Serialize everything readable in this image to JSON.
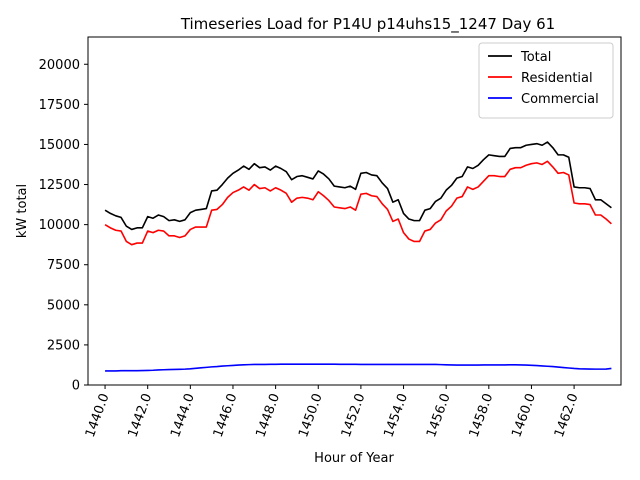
{
  "chart_data": {
    "type": "line",
    "title": "Timeseries Load for P14U p14uhs15_1247  Day 61",
    "xlabel": "Hour of Year",
    "ylabel": "kW total",
    "xlim": [
      1439.2,
      1464.2
    ],
    "ylim": [
      0,
      21700
    ],
    "xticks": [
      1440,
      1442,
      1444,
      1446,
      1448,
      1450,
      1452,
      1454,
      1456,
      1458,
      1460,
      1462
    ],
    "xtick_labels": [
      "1440.0",
      "1442.0",
      "1444.0",
      "1446.0",
      "1448.0",
      "1450.0",
      "1452.0",
      "1454.0",
      "1456.0",
      "1458.0",
      "1460.0",
      "1462.0"
    ],
    "yticks": [
      0,
      2500,
      5000,
      7500,
      10000,
      12500,
      15000,
      17500,
      20000
    ],
    "ytick_labels": [
      "0",
      "2500",
      "5000",
      "7500",
      "10000",
      "12500",
      "15000",
      "17500",
      "20000"
    ],
    "legend_position": "top-right",
    "x_start": 1440,
    "x_step": 0.25,
    "series": [
      {
        "name": "Total",
        "color": "#000000",
        "values": [
          10900,
          10700,
          10550,
          10450,
          9900,
          9700,
          9800,
          9800,
          10500,
          10400,
          10600,
          10500,
          10250,
          10300,
          10200,
          10300,
          10750,
          10900,
          10950,
          11000,
          12100,
          12150,
          12500,
          12900,
          13200,
          13400,
          13650,
          13450,
          13800,
          13550,
          13600,
          13400,
          13650,
          13500,
          13300,
          12800,
          13000,
          13050,
          12950,
          12850,
          13350,
          13150,
          12850,
          12400,
          12350,
          12300,
          12400,
          12200,
          13200,
          13250,
          13100,
          13050,
          12600,
          12250,
          11400,
          11550,
          10700,
          10350,
          10250,
          10250,
          10900,
          11000,
          11450,
          11650,
          12150,
          12450,
          12900,
          13000,
          13600,
          13500,
          13700,
          14050,
          14350,
          14300,
          14250,
          14250,
          14750,
          14800,
          14800,
          14950,
          15000,
          15050,
          14950,
          15150,
          14800,
          14350,
          14350,
          14200,
          12350,
          12300,
          12300,
          12250,
          11550,
          11550,
          11300,
          11050
        ]
      },
      {
        "name": "Residential",
        "color": "#ff0000",
        "values": [
          10000,
          9800,
          9650,
          9600,
          8950,
          8750,
          8850,
          8850,
          9600,
          9500,
          9650,
          9600,
          9300,
          9300,
          9200,
          9300,
          9700,
          9850,
          9850,
          9850,
          10900,
          10950,
          11250,
          11700,
          12000,
          12150,
          12350,
          12150,
          12500,
          12250,
          12300,
          12100,
          12300,
          12150,
          11950,
          11400,
          11650,
          11700,
          11650,
          11550,
          12050,
          11800,
          11500,
          11100,
          11050,
          11000,
          11100,
          10900,
          11900,
          11950,
          11800,
          11750,
          11300,
          10950,
          10200,
          10350,
          9500,
          9100,
          8950,
          8950,
          9600,
          9700,
          10100,
          10300,
          10850,
          11150,
          11650,
          11750,
          12350,
          12200,
          12350,
          12700,
          13050,
          13050,
          13000,
          13000,
          13450,
          13550,
          13550,
          13700,
          13800,
          13850,
          13750,
          13950,
          13600,
          13200,
          13250,
          13100,
          11350,
          11300,
          11300,
          11250,
          10600,
          10600,
          10350,
          10050
        ]
      },
      {
        "name": "Commercial",
        "color": "#0000ff",
        "values": [
          880,
          880,
          880,
          890,
          890,
          890,
          890,
          900,
          910,
          920,
          940,
          950,
          960,
          970,
          980,
          990,
          1010,
          1040,
          1070,
          1100,
          1130,
          1150,
          1180,
          1200,
          1220,
          1240,
          1260,
          1270,
          1280,
          1280,
          1285,
          1290,
          1290,
          1295,
          1295,
          1300,
          1300,
          1300,
          1300,
          1300,
          1300,
          1300,
          1295,
          1295,
          1290,
          1290,
          1290,
          1290,
          1285,
          1285,
          1285,
          1285,
          1285,
          1285,
          1285,
          1285,
          1285,
          1285,
          1285,
          1285,
          1285,
          1285,
          1280,
          1270,
          1260,
          1250,
          1245,
          1240,
          1240,
          1245,
          1245,
          1250,
          1250,
          1250,
          1250,
          1250,
          1260,
          1260,
          1250,
          1240,
          1230,
          1210,
          1190,
          1170,
          1150,
          1120,
          1090,
          1060,
          1030,
          1010,
          1000,
          995,
          990,
          990,
          995,
          1030
        ]
      }
    ]
  }
}
